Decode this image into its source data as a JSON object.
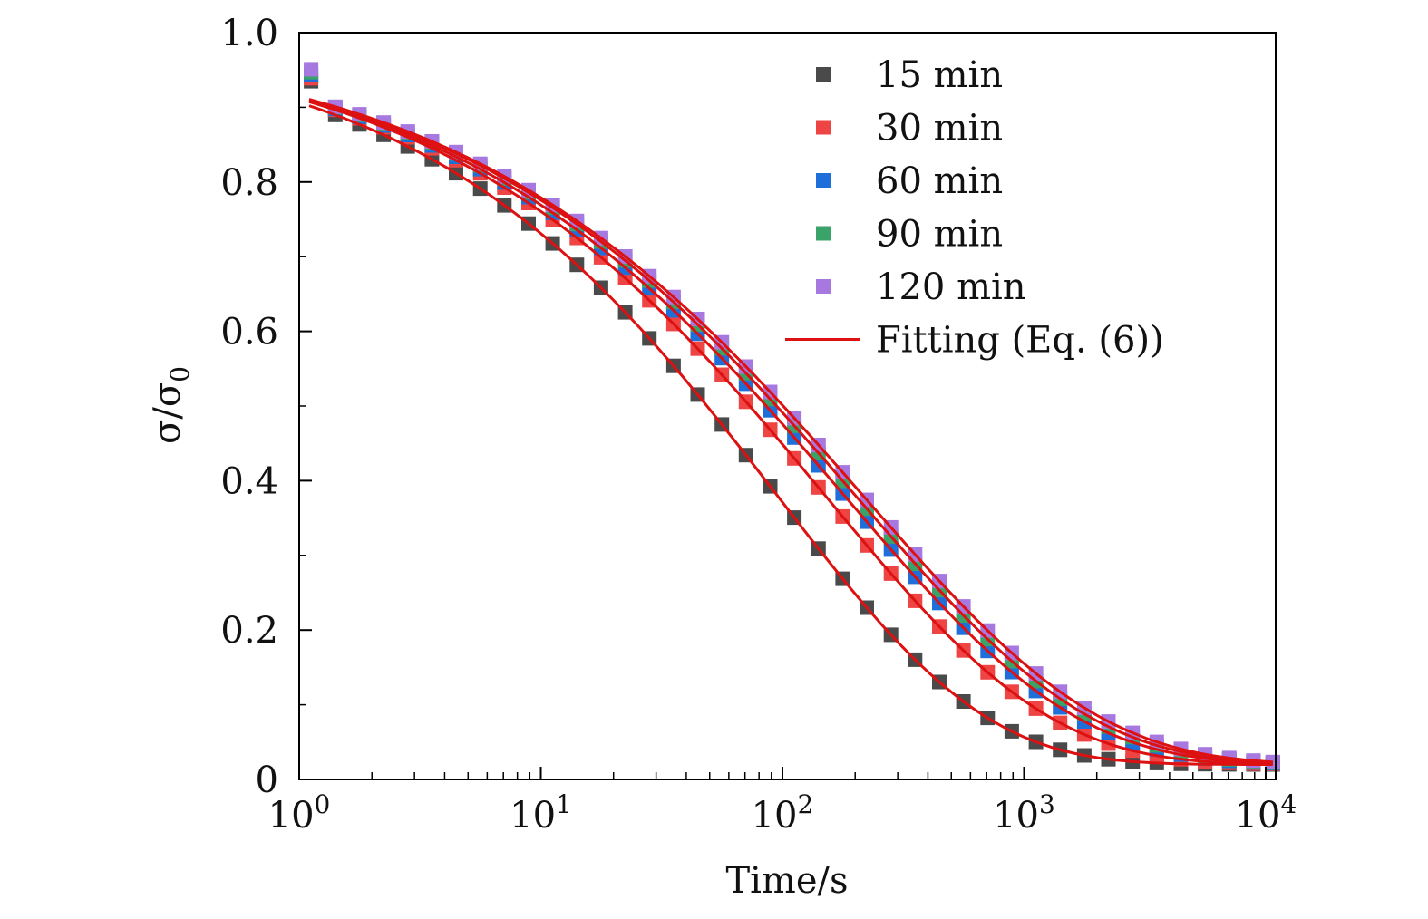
{
  "chart_data": {
    "type": "scatter",
    "title": "",
    "xlabel": "Time/s",
    "ylabel": "σ/σ0",
    "ylabel_main": "σ/σ",
    "ylabel_sub": "0",
    "xscale": "log",
    "xlim": [
      1,
      11000
    ],
    "ylim": [
      0,
      1.0
    ],
    "grid": false,
    "legend_position": "top-right",
    "x_ticks": [
      {
        "value": 1,
        "base": "10",
        "exp": "0"
      },
      {
        "value": 10,
        "base": "10",
        "exp": "1"
      },
      {
        "value": 100,
        "base": "10",
        "exp": "2"
      },
      {
        "value": 1000,
        "base": "10",
        "exp": "3"
      },
      {
        "value": 10000,
        "base": "10",
        "exp": "4"
      }
    ],
    "y_ticks": [
      {
        "value": 0,
        "label": "0"
      },
      {
        "value": 0.2,
        "label": "0.2"
      },
      {
        "value": 0.4,
        "label": "0.4"
      },
      {
        "value": 0.6,
        "label": "0.6"
      },
      {
        "value": 0.8,
        "label": "0.8"
      },
      {
        "value": 1.0,
        "label": "1.0"
      }
    ],
    "series": [
      {
        "name": "15 min",
        "color": "#4a4a4a",
        "marker": "square",
        "tau": 95,
        "beta": 0.505,
        "tail": 0.02
      },
      {
        "name": "30 min",
        "color": "#ee4444",
        "marker": "square",
        "tau": 150,
        "beta": 0.47,
        "tail": 0.02
      },
      {
        "name": "60 min",
        "color": "#1e6fd9",
        "marker": "square",
        "tau": 180,
        "beta": 0.455,
        "tail": 0.02
      },
      {
        "name": "90 min",
        "color": "#3aa36a",
        "marker": "square",
        "tau": 200,
        "beta": 0.45,
        "tail": 0.02
      },
      {
        "name": "120 min",
        "color": "#a779e0",
        "marker": "square",
        "tau": 215,
        "beta": 0.445,
        "tail": 0.02
      }
    ],
    "fit": {
      "name": "Fitting (Eq. (6))",
      "color": "#dd1111",
      "marker": "line"
    },
    "legend_entries": [
      "15 min",
      "30 min",
      "60 min",
      "90 min",
      "120 min",
      "Fitting (Eq. (6))"
    ]
  }
}
